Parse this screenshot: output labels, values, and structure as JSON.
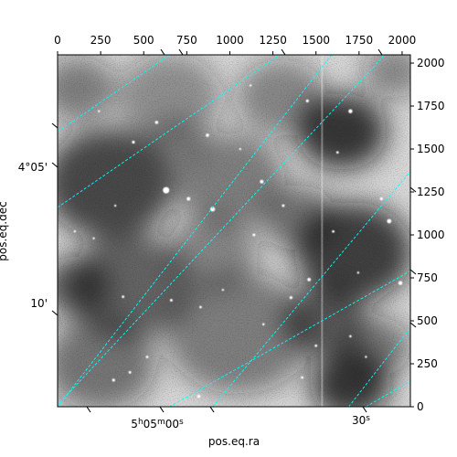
{
  "chart_data": {
    "type": "heatmap",
    "title": "",
    "colormap": "gray",
    "grid": true,
    "grid_color": "#00ffff",
    "xlabel": "pos.eq.ra",
    "ylabel": "pos.eq.dec",
    "pixel_axes": {
      "xlim": [
        0,
        2048
      ],
      "ylim": [
        0,
        2048
      ],
      "top_ticks": [
        0,
        250,
        500,
        750,
        1000,
        1250,
        1500,
        1750,
        2000
      ],
      "right_ticks": [
        0,
        250,
        500,
        750,
        1000,
        1250,
        1500,
        1750,
        2000
      ]
    },
    "world_ticks": {
      "ra": [
        "5h05m00s",
        "30s"
      ],
      "dec": [
        "4°05'",
        "10'"
      ]
    },
    "stars": [
      [
        630,
        1260,
        3.5
      ],
      [
        900,
        1150,
        2.6
      ],
      [
        1185,
        1310,
        2.0
      ],
      [
        760,
        1210,
        2.0
      ],
      [
        1700,
        1720,
        2.2
      ],
      [
        1925,
        1080,
        2.4
      ],
      [
        1990,
        720,
        2.2
      ],
      [
        1460,
        740,
        1.9
      ],
      [
        1355,
        635,
        1.6
      ],
      [
        870,
        1580,
        1.8
      ],
      [
        575,
        1655,
        1.8
      ],
      [
        440,
        1540,
        1.6
      ],
      [
        1450,
        1780,
        1.6
      ],
      [
        1310,
        1170,
        1.5
      ],
      [
        1140,
        1000,
        1.5
      ],
      [
        660,
        620,
        1.5
      ],
      [
        380,
        640,
        1.4
      ],
      [
        830,
        580,
        1.4
      ],
      [
        1600,
        1020,
        1.4
      ],
      [
        1880,
        1210,
        1.6
      ],
      [
        820,
        60,
        1.7
      ],
      [
        325,
        155,
        1.6
      ],
      [
        420,
        200,
        1.5
      ],
      [
        520,
        290,
        1.4
      ],
      [
        1500,
        355,
        1.4
      ],
      [
        1420,
        170,
        1.4
      ],
      [
        1625,
        1480,
        1.4
      ],
      [
        1700,
        410,
        1.3
      ],
      [
        1195,
        480,
        1.3
      ],
      [
        335,
        1170,
        1.2
      ],
      [
        100,
        1020,
        1.2
      ],
      [
        1120,
        1870,
        1.2
      ],
      [
        240,
        1720,
        1.2
      ],
      [
        1745,
        780,
        1.2
      ],
      [
        1060,
        1500,
        1.2
      ],
      [
        210,
        980,
        1.2
      ],
      [
        1790,
        290,
        1.2
      ],
      [
        960,
        680,
        1.2
      ]
    ],
    "nebula": [
      [
        300,
        1300,
        380,
        0.85
      ],
      [
        1000,
        1320,
        320,
        0.55
      ],
      [
        420,
        700,
        360,
        0.7
      ],
      [
        1050,
        430,
        420,
        0.55
      ],
      [
        1650,
        1600,
        260,
        0.95
      ],
      [
        1720,
        900,
        340,
        0.9
      ],
      [
        1700,
        130,
        230,
        0.95
      ],
      [
        1550,
        500,
        240,
        0.75
      ],
      [
        250,
        250,
        320,
        0.6
      ],
      [
        900,
        900,
        260,
        0.5
      ],
      [
        650,
        1800,
        300,
        0.45
      ],
      [
        1300,
        1800,
        260,
        0.5
      ],
      [
        120,
        1850,
        220,
        0.55
      ],
      [
        1950,
        1950,
        180,
        0.5
      ],
      [
        1400,
        1100,
        220,
        0.6
      ],
      [
        700,
        1550,
        160,
        0.45
      ],
      [
        100,
        700,
        200,
        0.7
      ],
      [
        1850,
        350,
        200,
        0.6
      ]
    ],
    "column_artifact_x": 1530,
    "grid_lines_ra": [
      [
        [
          0,
          1160
        ],
        [
          1290,
          2048
        ]
      ],
      [
        [
          0,
          10
        ],
        [
          1900,
          2048
        ]
      ],
      [
        [
          650,
          0
        ],
        [
          2048,
          790
        ]
      ],
      [
        [
          1790,
          0
        ],
        [
          2048,
          150
        ]
      ]
    ],
    "grid_lines_dec": [
      [
        [
          0,
          0
        ],
        [
          1590,
          2048
        ]
      ],
      [
        [
          0,
          1600
        ],
        [
          650,
          2048
        ]
      ],
      [
        [
          900,
          0
        ],
        [
          2048,
          1370
        ]
      ],
      [
        [
          1690,
          0
        ],
        [
          2048,
          460
        ]
      ]
    ]
  }
}
